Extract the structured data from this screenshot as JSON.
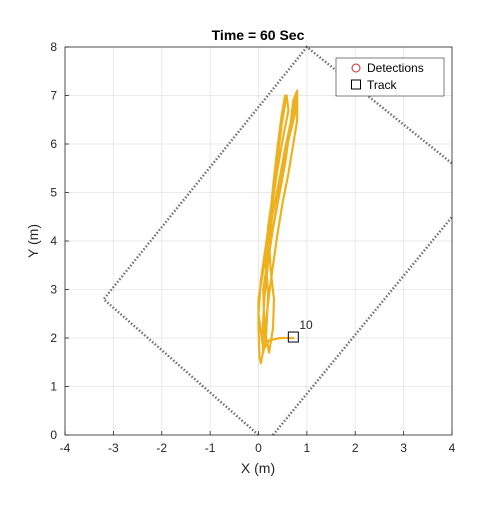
{
  "colors": {
    "track_history": "#EDB120",
    "detection_marker": "#D62728",
    "track_marker": "#000000",
    "coverage_boundary": "#707070",
    "grid": "#E3E3E3",
    "axes": "#262626"
  },
  "chart_data": {
    "type": "line",
    "title": "Time = 60 Sec",
    "xlabel": "X (m)",
    "ylabel": "Y (m)",
    "xlim": [
      -4,
      4
    ],
    "ylim": [
      0,
      8
    ],
    "xticks": [
      "-4",
      "-3",
      "-2",
      "-1",
      "0",
      "1",
      "2",
      "3",
      "4"
    ],
    "yticks": [
      "0",
      "1",
      "2",
      "3",
      "4",
      "5",
      "6",
      "7",
      "8"
    ],
    "grid": true,
    "legend_position": "top-right",
    "legend": [
      {
        "label": "Detections",
        "marker": "circle",
        "color": "#D62728"
      },
      {
        "label": "Track",
        "marker": "square",
        "color": "#000000"
      }
    ],
    "coverage_boundary": {
      "style": "dotted",
      "color": "#707070",
      "points": [
        [
          0,
          0
        ],
        [
          -3.2,
          2.8
        ],
        [
          1.0,
          8.0
        ],
        [
          4.0,
          5.6
        ]
      ],
      "segment2": [
        [
          0.3,
          0
        ],
        [
          4.0,
          4.5
        ]
      ]
    },
    "track_history": {
      "color": "#EDB120",
      "points": [
        [
          0.72,
          2.0
        ],
        [
          0.62,
          2.0
        ],
        [
          0.45,
          2.0
        ],
        [
          0.22,
          1.95
        ],
        [
          0.1,
          1.75
        ],
        [
          0.05,
          1.48
        ],
        [
          0.02,
          1.6
        ],
        [
          0.0,
          2.2
        ],
        [
          0.0,
          2.8
        ],
        [
          0.1,
          3.4
        ],
        [
          0.25,
          4.0
        ],
        [
          0.4,
          4.8
        ],
        [
          0.55,
          5.6
        ],
        [
          0.65,
          6.3
        ],
        [
          0.72,
          6.9
        ],
        [
          0.8,
          7.1
        ],
        [
          0.75,
          6.6
        ],
        [
          0.6,
          6.0
        ],
        [
          0.45,
          5.2
        ],
        [
          0.32,
          4.4
        ],
        [
          0.2,
          3.6
        ],
        [
          0.12,
          2.8
        ],
        [
          0.08,
          2.0
        ],
        [
          0.1,
          1.7
        ],
        [
          0.16,
          2.1
        ],
        [
          0.2,
          2.9
        ],
        [
          0.15,
          3.6
        ],
        [
          0.2,
          4.3
        ],
        [
          0.3,
          5.0
        ],
        [
          0.38,
          5.6
        ],
        [
          0.48,
          6.4
        ],
        [
          0.58,
          7.0
        ],
        [
          0.62,
          6.7
        ],
        [
          0.5,
          6.1
        ],
        [
          0.38,
          5.4
        ],
        [
          0.28,
          4.7
        ],
        [
          0.22,
          4.0
        ],
        [
          0.25,
          3.4
        ],
        [
          0.32,
          2.8
        ],
        [
          0.3,
          2.2
        ],
        [
          0.22,
          1.7
        ],
        [
          0.12,
          2.2
        ],
        [
          0.1,
          3.0
        ],
        [
          0.2,
          3.7
        ],
        [
          0.28,
          4.5
        ],
        [
          0.42,
          5.2
        ],
        [
          0.55,
          5.9
        ],
        [
          0.7,
          6.6
        ],
        [
          0.8,
          7.05
        ],
        [
          0.8,
          6.5
        ],
        [
          0.72,
          6.0
        ],
        [
          0.62,
          5.4
        ],
        [
          0.5,
          4.8
        ],
        [
          0.4,
          4.2
        ],
        [
          0.3,
          3.5
        ],
        [
          0.22,
          2.9
        ],
        [
          0.15,
          2.3
        ],
        [
          0.08,
          1.9
        ],
        [
          0.0,
          2.5
        ],
        [
          0.05,
          3.2
        ],
        [
          0.15,
          3.9
        ],
        [
          0.25,
          4.6
        ],
        [
          0.32,
          5.3
        ],
        [
          0.4,
          6.0
        ],
        [
          0.48,
          6.6
        ],
        [
          0.55,
          7.0
        ]
      ]
    },
    "tracks": [
      {
        "id": "10",
        "x": 0.72,
        "y": 2.02
      }
    ]
  }
}
